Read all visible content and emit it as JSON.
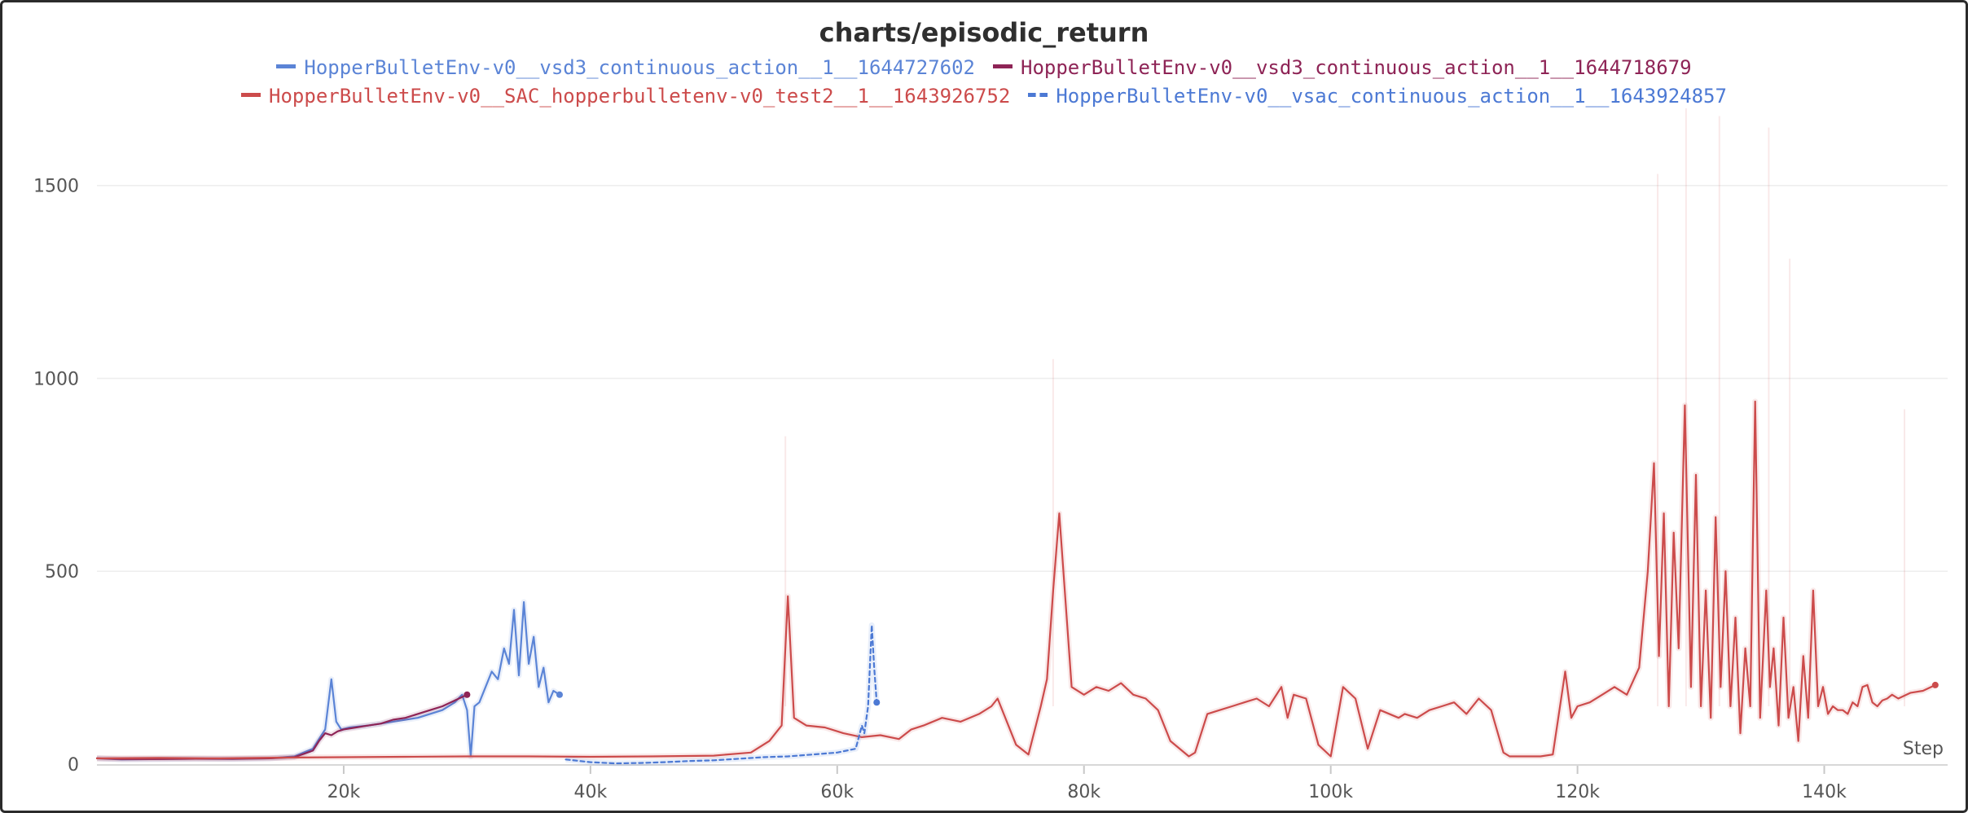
{
  "chart_data": {
    "type": "line",
    "title": "charts/episodic_return",
    "xlabel": "Step",
    "ylabel": "",
    "xlim": [
      0,
      150000
    ],
    "ylim": [
      0,
      1700
    ],
    "x_ticks": [
      {
        "value": 20000,
        "label": "20k"
      },
      {
        "value": 40000,
        "label": "40k"
      },
      {
        "value": 60000,
        "label": "60k"
      },
      {
        "value": 80000,
        "label": "80k"
      },
      {
        "value": 100000,
        "label": "100k"
      },
      {
        "value": 120000,
        "label": "120k"
      },
      {
        "value": 140000,
        "label": "140k"
      }
    ],
    "y_ticks": [
      {
        "value": 0,
        "label": "0"
      },
      {
        "value": 500,
        "label": "500"
      },
      {
        "value": 1000,
        "label": "1000"
      },
      {
        "value": 1500,
        "label": "1500"
      }
    ],
    "grid": true,
    "legend_position": "top",
    "series": [
      {
        "name": "HopperBulletEnv-v0__vsd3_continuous_action__1__1644727602",
        "color": "#5b84d6",
        "dashed": false,
        "x": [
          0,
          2000,
          5000,
          8000,
          11000,
          14000,
          16000,
          17500,
          18500,
          19000,
          19400,
          19800,
          20500,
          22000,
          24000,
          26000,
          28000,
          29000,
          29600,
          30000,
          30300,
          30600,
          31000,
          31500,
          32000,
          32500,
          33000,
          33400,
          33800,
          34200,
          34600,
          35000,
          35400,
          35800,
          36200,
          36600,
          37000,
          37500
        ],
        "y": [
          15,
          12,
          13,
          14,
          13,
          15,
          20,
          40,
          90,
          220,
          110,
          90,
          95,
          100,
          110,
          120,
          140,
          160,
          180,
          140,
          20,
          150,
          160,
          200,
          240,
          220,
          300,
          260,
          400,
          230,
          420,
          260,
          330,
          200,
          250,
          160,
          190,
          180
        ]
      },
      {
        "name": "HopperBulletEnv-v0__vsd3_continuous_action__1__1644718679",
        "color": "#8e2456",
        "dashed": false,
        "x": [
          0,
          2000,
          5000,
          8000,
          11000,
          14000,
          16000,
          17500,
          18000,
          18500,
          19000,
          19500,
          20000,
          21000,
          22000,
          23000,
          24000,
          25000,
          26000,
          27000,
          28000,
          29000,
          30000
        ],
        "y": [
          15,
          13,
          13,
          14,
          14,
          15,
          18,
          35,
          60,
          80,
          75,
          85,
          90,
          95,
          100,
          105,
          115,
          120,
          130,
          140,
          150,
          165,
          180
        ]
      },
      {
        "name": "HopperBulletEnv-v0__SAC_hopperbulletenv-v0_test2__1__1643926752",
        "color": "#cc4b4b",
        "dashed": false,
        "x": [
          0,
          5000,
          10000,
          15000,
          20000,
          25000,
          30000,
          35000,
          40000,
          45000,
          50000,
          53000,
          54500,
          55500,
          56000,
          56500,
          57500,
          59000,
          60500,
          62000,
          63500,
          65000,
          66000,
          67000,
          68500,
          70000,
          71500,
          72500,
          73000,
          74500,
          75500,
          76500,
          77000,
          77500,
          78000,
          79000,
          80000,
          81000,
          82000,
          83000,
          84000,
          85000,
          86000,
          87000,
          88500,
          89000,
          90000,
          91000,
          92000,
          93000,
          94000,
          95000,
          96000,
          96500,
          97000,
          98000,
          99000,
          100000,
          101000,
          102000,
          103000,
          104000,
          105500,
          106000,
          107000,
          108000,
          109000,
          110000,
          111000,
          112000,
          113000,
          114000,
          114500,
          115000,
          116000,
          117000,
          118000,
          119000,
          119500,
          120000,
          121000,
          122000,
          123000,
          124000,
          125000,
          125700,
          126200,
          126600,
          127000,
          127400,
          127800,
          128200,
          128700,
          129200,
          129600,
          130000,
          130400,
          130800,
          131200,
          131600,
          132000,
          132400,
          132800,
          133200,
          133600,
          134000,
          134400,
          134800,
          135300,
          135600,
          135900,
          136300,
          136700,
          137100,
          137500,
          137900,
          138300,
          138700,
          139100,
          139500,
          139900,
          140300,
          140700,
          141100,
          141500,
          141900,
          142300,
          142700,
          143100,
          143500,
          143900,
          144300,
          144700,
          145100,
          145500,
          146000,
          147000,
          148000,
          149000
        ],
        "y": [
          15,
          16,
          15,
          17,
          18,
          19,
          20,
          20,
          19,
          20,
          22,
          30,
          60,
          100,
          435,
          120,
          100,
          95,
          80,
          70,
          75,
          65,
          90,
          100,
          120,
          110,
          130,
          150,
          170,
          50,
          25,
          150,
          220,
          450,
          650,
          200,
          180,
          200,
          190,
          210,
          180,
          170,
          140,
          60,
          20,
          30,
          130,
          140,
          150,
          160,
          170,
          150,
          200,
          120,
          180,
          170,
          50,
          20,
          200,
          170,
          40,
          140,
          120,
          130,
          120,
          140,
          150,
          160,
          130,
          170,
          140,
          30,
          20,
          20,
          20,
          20,
          25,
          240,
          120,
          150,
          160,
          180,
          200,
          180,
          250,
          500,
          780,
          280,
          650,
          150,
          600,
          300,
          930,
          200,
          750,
          150,
          450,
          120,
          640,
          200,
          500,
          150,
          380,
          80,
          300,
          150,
          940,
          120,
          450,
          200,
          300,
          100,
          380,
          120,
          200,
          60,
          280,
          120,
          450,
          150,
          200,
          130,
          150,
          140,
          140,
          130,
          160,
          150,
          200,
          205,
          160,
          150,
          165,
          170,
          180,
          170,
          185,
          190,
          205
        ],
        "raw_peaks": [
          {
            "x": 55800,
            "y": 850
          },
          {
            "x": 77500,
            "y": 1050
          },
          {
            "x": 126500,
            "y": 1530
          },
          {
            "x": 128800,
            "y": 1700
          },
          {
            "x": 131500,
            "y": 1680
          },
          {
            "x": 135500,
            "y": 1650
          },
          {
            "x": 137200,
            "y": 1310
          },
          {
            "x": 146500,
            "y": 920
          }
        ]
      },
      {
        "name": "HopperBulletEnv-v0__vsac_continuous_action__1__1643924857",
        "color": "#4c79d4",
        "dashed": true,
        "x": [
          38000,
          40000,
          42000,
          44000,
          46000,
          48000,
          50000,
          52000,
          54000,
          56000,
          58000,
          60000,
          61500,
          62000,
          62200,
          62500,
          62800,
          63000,
          63200
        ],
        "y": [
          12,
          5,
          2,
          3,
          5,
          8,
          10,
          14,
          18,
          20,
          25,
          30,
          40,
          100,
          80,
          150,
          360,
          250,
          160
        ]
      }
    ]
  }
}
